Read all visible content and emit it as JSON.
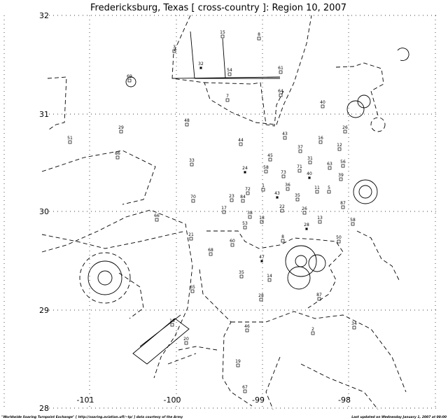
{
  "header": {
    "title": "Fredericksburg, Texas [ cross-country ]: Region 10, 2007"
  },
  "axes": {
    "lat_labels": [
      "32",
      "31",
      "30",
      "29",
      "28"
    ],
    "lon_labels": [
      "-101",
      "-100",
      "-99",
      "-98"
    ]
  },
  "sites": [
    "15",
    "8",
    "3",
    "32",
    "54",
    "61",
    "69",
    "64",
    "7",
    "40",
    "48",
    "29",
    "26",
    "51",
    "43",
    "16",
    "44",
    "12",
    "37",
    "86",
    "45",
    "33",
    "31",
    "63",
    "56",
    "24",
    "58",
    "73",
    "71",
    "40",
    "39",
    "36",
    "11",
    "5",
    "1",
    "72",
    "43",
    "35",
    "23",
    "84",
    "70",
    "87",
    "22",
    "26",
    "17",
    "38",
    "18",
    "66",
    "13",
    "53",
    "28",
    "58",
    "21",
    "8",
    "50",
    "60",
    "68",
    "47",
    "35",
    "14",
    "65",
    "87",
    "28",
    "16",
    "46",
    "34",
    "2",
    "20",
    "19",
    "67"
  ],
  "footer": {
    "left": "\"Worldwide Soaring Turnpoint Exchange\" [ http://soaring.aviation.ufl/~tp/ ] data courtesy of the Army",
    "right": "Last updated on Wednesday January 1, 2007 at 00:00"
  }
}
